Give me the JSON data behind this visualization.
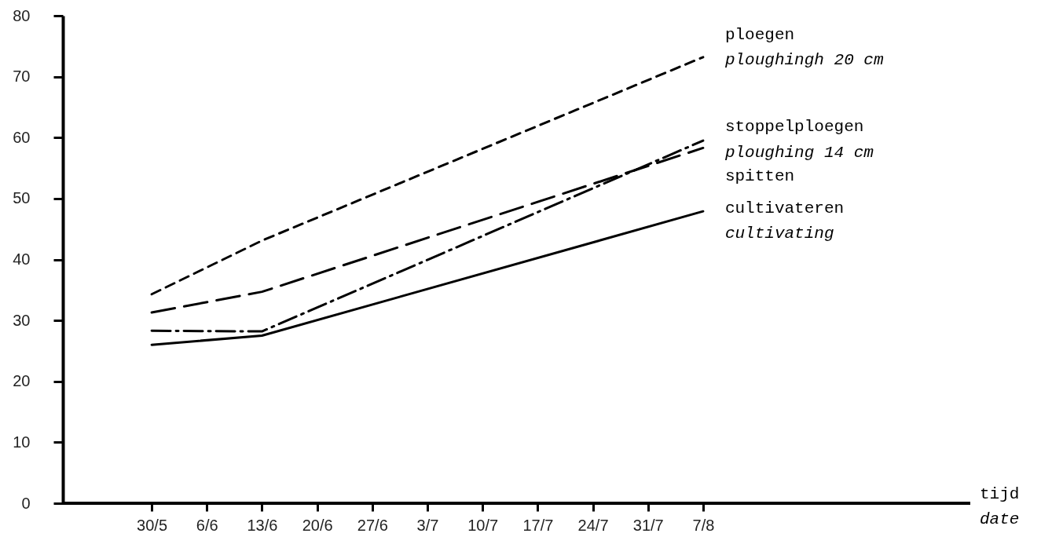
{
  "chart_data": {
    "type": "line",
    "annotations": [
      "tijd\ndate"
    ],
    "categories": [
      "30/5",
      "6/6",
      "13/6",
      "20/6",
      "27/6",
      "3/7",
      "10/7",
      "17/7",
      "24/7",
      "31/7",
      "7/8"
    ],
    "ylim": [
      0,
      80
    ],
    "yticks": [
      0,
      10,
      20,
      30,
      40,
      50,
      60,
      70,
      80
    ],
    "grid": false,
    "series": [
      {
        "name": "ploegen\nploughingh 20 cm",
        "color": "#000000",
        "line_style": "dashed",
        "x": [
          "30/5",
          "13/6",
          "7/8"
        ],
        "values": [
          34.3,
          43.1,
          73.2
        ]
      },
      {
        "name": "stoppelploegen\nploughing 14 cm",
        "color": "#000000",
        "line_style": "dashdot",
        "x": [
          "30/5",
          "13/6",
          "7/8"
        ],
        "values": [
          28.3,
          28.2,
          59.5
        ]
      },
      {
        "name": "spitten",
        "color": "#000000",
        "line_style": "longdash",
        "x": [
          "30/5",
          "13/6",
          "7/8"
        ],
        "values": [
          31.3,
          34.7,
          58.3
        ]
      },
      {
        "name": "cultivateren\ncultivating",
        "color": "#000000",
        "line_style": "solid",
        "x": [
          "30/5",
          "13/6",
          "7/8"
        ],
        "values": [
          26.0,
          27.5,
          47.9
        ]
      }
    ]
  }
}
